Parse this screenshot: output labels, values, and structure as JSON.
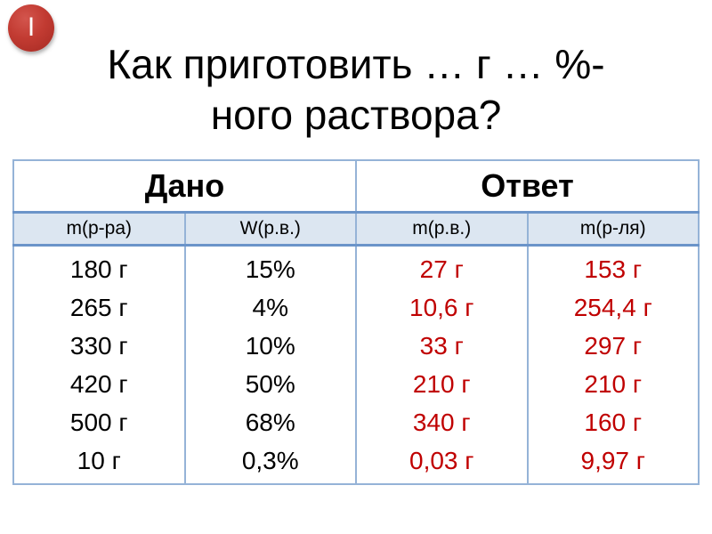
{
  "slide": {
    "badge_label": "I",
    "title_line1": "Как приготовить … г … %-",
    "title_line2": "ного раствора?",
    "colors": {
      "badge_red": "#c23b32",
      "answer_text_red": "#c00000",
      "table_border_blue": "#95b3d7",
      "subheader_fill_blue": "#dce6f1",
      "header_separator_blue": "#6b94c9"
    }
  },
  "table": {
    "groups": [
      {
        "label": "Дано"
      },
      {
        "label": "Ответ"
      }
    ],
    "columns": [
      {
        "header": "m(р-ра)",
        "group": "Дано",
        "values": [
          "180 г",
          "265 г",
          "330 г",
          "420 г",
          "500 г",
          "10 г"
        ]
      },
      {
        "header": "W(р.в.)",
        "group": "Дано",
        "values": [
          "15%",
          "4%",
          "10%",
          "50%",
          "68%",
          "0,3%"
        ]
      },
      {
        "header": "m(р.в.)",
        "group": "Ответ",
        "values": [
          "27 г",
          "10,6 г",
          "33 г",
          "210 г",
          "340 г",
          "0,03 г"
        ]
      },
      {
        "header": "m(р-ля)",
        "group": "Ответ",
        "values": [
          "153 г",
          "254,4 г",
          "297 г",
          "210 г",
          "160 г",
          "9,97 г"
        ]
      }
    ]
  }
}
